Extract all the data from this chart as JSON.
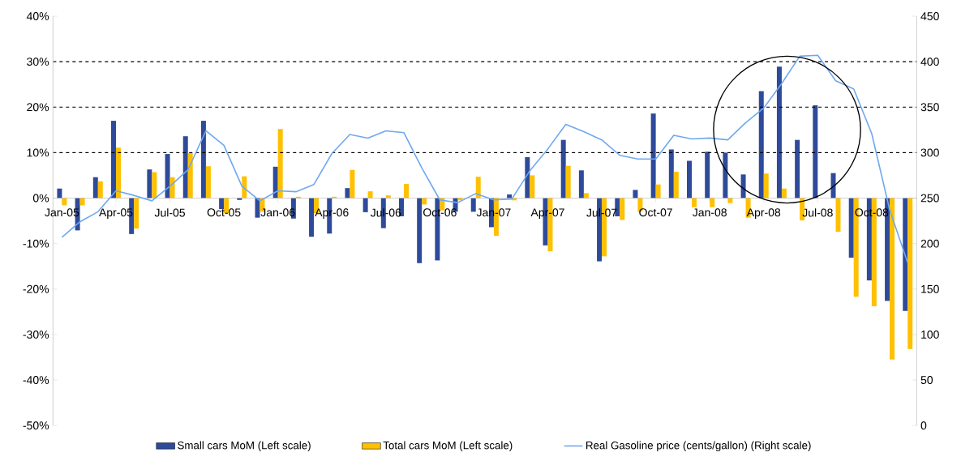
{
  "chart_data": {
    "type": "bar",
    "categories": [
      "Jan-05",
      null,
      null,
      "Apr-05",
      null,
      null,
      "Jul-05",
      null,
      null,
      "Oct-05",
      null,
      null,
      "Jan-06",
      null,
      null,
      "Apr-06",
      null,
      null,
      "Jul-06",
      null,
      null,
      "Oct-06",
      null,
      null,
      "Jan-07",
      null,
      null,
      "Apr-07",
      null,
      null,
      "Jul-07",
      null,
      null,
      "Oct-07",
      null,
      null,
      "Jan-08",
      null,
      null,
      "Apr-08",
      null,
      null,
      "Jul-08",
      null,
      null,
      "Oct-08",
      null,
      null
    ],
    "series": [
      {
        "name": "Small cars MoM (Left scale)",
        "color": "#2e4a9a",
        "values": [
          2.1,
          -7.1,
          4.6,
          17.0,
          -7.9,
          6.3,
          9.7,
          13.6,
          17.0,
          -2.4,
          -0.4,
          -4.3,
          6.9,
          -4.5,
          -8.5,
          -7.8,
          2.2,
          -3.1,
          -6.6,
          -4.0,
          -14.3,
          -13.7,
          -3.0,
          -3.0,
          -6.4,
          0.8,
          9.0,
          -10.4,
          12.8,
          6.1,
          -13.9,
          -4.0,
          1.8,
          18.6,
          10.7,
          8.2,
          10.2,
          10.0,
          5.2,
          23.5,
          28.9,
          12.8,
          20.4,
          5.5,
          -13.1,
          -18.1,
          -22.6,
          -24.8
        ]
      },
      {
        "name": "Total cars MoM (Left scale)",
        "color": "#ffc000",
        "values": [
          -1.6,
          -1.6,
          3.7,
          11.1,
          -6.7,
          5.7,
          4.6,
          9.9,
          7.0,
          -3.3,
          4.8,
          -3.0,
          15.2,
          0.3,
          -3.3,
          0.3,
          6.2,
          1.5,
          0.6,
          3.1,
          -1.4,
          -2.7,
          -0.5,
          4.7,
          -8.3,
          -0.5,
          5.0,
          -11.7,
          7.1,
          1.1,
          -12.8,
          -4.8,
          -3.0,
          3.0,
          5.8,
          -2.0,
          -2.0,
          -1.1,
          -4.3,
          5.4,
          2.1,
          -4.9,
          0.0,
          -7.4,
          -21.7,
          -23.8,
          -35.5,
          -33.2
        ]
      },
      {
        "name": "Real Gasoline price (cents/gallon) (Right scale)",
        "type": "line",
        "axis": "y2",
        "color": "#6fa8f0",
        "values": [
          207,
          224,
          235,
          258,
          253,
          247,
          263,
          281,
          324,
          308,
          263,
          247,
          258,
          257,
          265,
          299,
          320,
          316,
          324,
          322,
          283,
          248,
          245,
          255,
          248,
          249,
          280,
          304,
          331,
          323,
          314,
          297,
          293,
          293,
          319,
          315,
          316,
          314,
          333,
          349,
          376,
          406,
          407,
          379,
          370,
          321,
          237,
          179
        ]
      }
    ],
    "ylim": [
      -50,
      40
    ],
    "yticks": [
      {
        "value": -50,
        "label": "-50%"
      },
      {
        "value": -40,
        "label": "-40%"
      },
      {
        "value": -30,
        "label": "-30%"
      },
      {
        "value": -20,
        "label": "-20%"
      },
      {
        "value": -10,
        "label": "-10%"
      },
      {
        "value": 0,
        "label": "0%"
      },
      {
        "value": 10,
        "label": "10%"
      },
      {
        "value": 20,
        "label": "20%"
      },
      {
        "value": 30,
        "label": "30%"
      },
      {
        "value": 40,
        "label": "40%"
      }
    ],
    "y2lim": [
      0,
      450
    ],
    "y2ticks": [
      0,
      50,
      100,
      150,
      200,
      250,
      300,
      350,
      400,
      450
    ],
    "ref_lines": [
      {
        "axis": "y",
        "value": 10,
        "color": "#000000",
        "line_style": "dashed"
      },
      {
        "axis": "y",
        "value": 20,
        "color": "#000000",
        "line_style": "dashed"
      },
      {
        "axis": "y",
        "value": 30,
        "color": "#000000",
        "line_style": "dashed"
      }
    ],
    "legend": "bottom",
    "marker": "none"
  }
}
